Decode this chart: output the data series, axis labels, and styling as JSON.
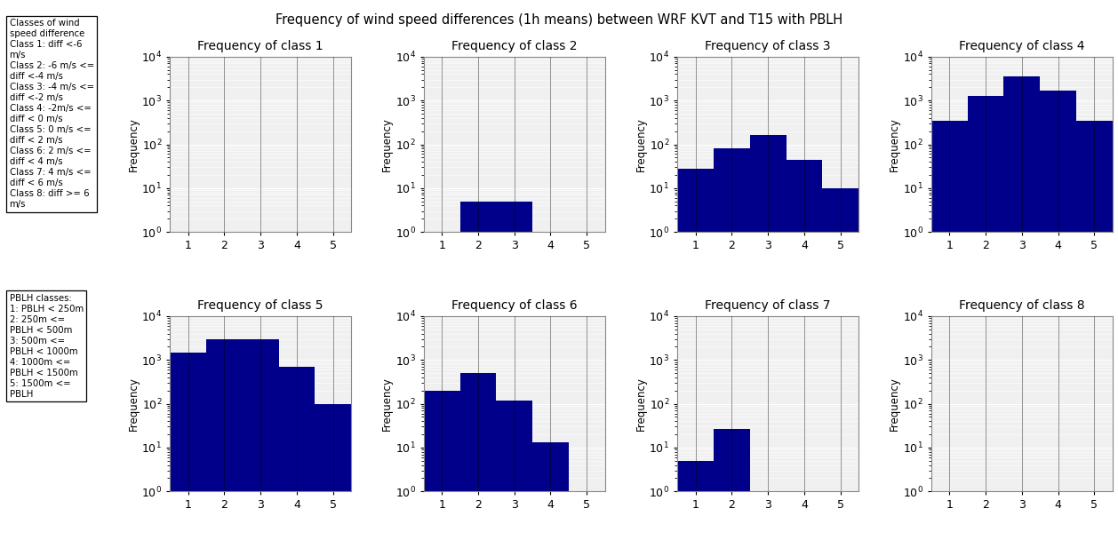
{
  "title": "Frequency of wind speed differences (1h means) between WRF KVT and T15 with PBLH",
  "subplot_titles": [
    "Frequency of class 1",
    "Frequency of class 2",
    "Frequency of class 3",
    "Frequency of class 4",
    "Frequency of class 5",
    "Frequency of class 6",
    "Frequency of class 7",
    "Frequency of class 8"
  ],
  "bar_values": [
    [
      0,
      0,
      0,
      0,
      0
    ],
    [
      0,
      5,
      5,
      0,
      0
    ],
    [
      28,
      80,
      160,
      45,
      10
    ],
    [
      350,
      1300,
      3500,
      1700,
      350
    ],
    [
      1500,
      3000,
      3000,
      700,
      100
    ],
    [
      200,
      500,
      120,
      13,
      0
    ],
    [
      5,
      27,
      0,
      0,
      0
    ],
    [
      0,
      0,
      0,
      0,
      0
    ]
  ],
  "bar_color": "#00008B",
  "ylabel": "Frequency",
  "xlabel_ticks": [
    1,
    2,
    3,
    4,
    5
  ],
  "ylim": [
    1.0,
    10000.0
  ],
  "background_color": "#ffffff",
  "axes_bg_color": "#f0f0f0",
  "grid_color": "#ffffff",
  "legend1_title": "Classes of wind\nspeed difference",
  "legend1_text": "Class 1: diff <-6\nm/s\nClass 2: -6 m/s <=\ndiff <-4 m/s\nClass 3: -4 m/s <=\ndiff <-2 m/s\nClass 4: -2m/s <=\ndiff < 0 m/s\nClass 5: 0 m/s <=\ndiff < 2 m/s\nClass 6: 2 m/s <=\ndiff < 4 m/s\nClass 7: 4 m/s <=\ndiff < 6 m/s\nClass 8: diff >= 6\nm/s",
  "legend2_title": "PBLH classes:",
  "legend2_text": "1: PBLH < 250m\n2: 250m <=\nPBLH < 500m\n3: 500m <=\nPBLH < 1000m\n4: 1000m <=\nPBLH < 1500m\n5: 1500m <=\nPBLH"
}
